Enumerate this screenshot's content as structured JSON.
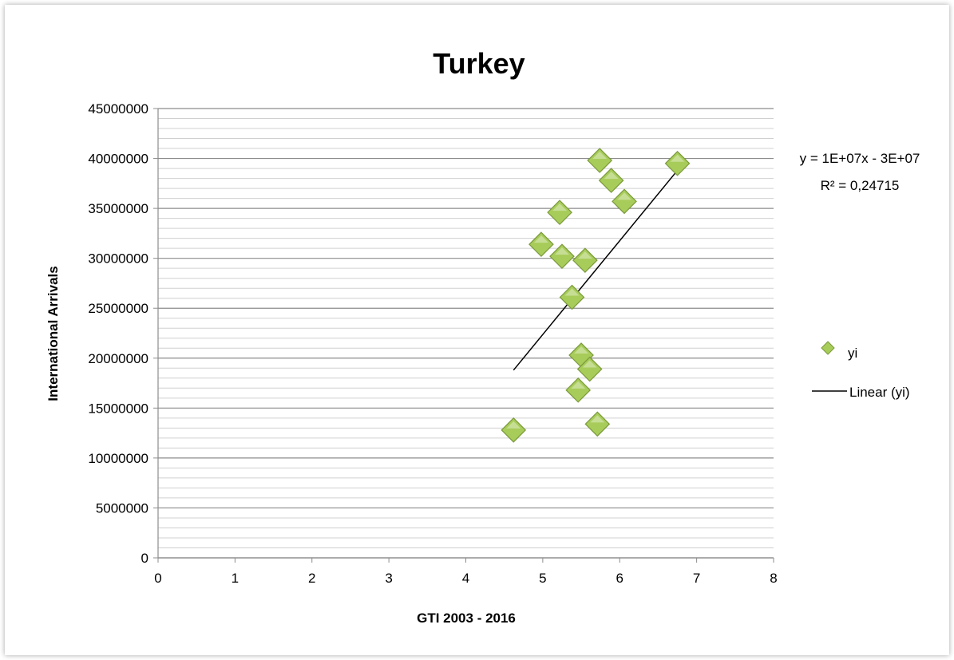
{
  "chart_data": {
    "type": "scatter",
    "title": "Turkey",
    "xlabel": "GTI 2003 - 2016",
    "ylabel": "International Arrivals",
    "xlim": [
      0,
      8
    ],
    "ylim": [
      0,
      45000000
    ],
    "x_ticks": [
      "0",
      "1",
      "2",
      "3",
      "4",
      "5",
      "6",
      "7",
      "8"
    ],
    "y_ticks": [
      "0",
      "5000000",
      "10000000",
      "15000000",
      "20000000",
      "25000000",
      "30000000",
      "35000000",
      "40000000",
      "45000000"
    ],
    "grid": "horizontal major and minor",
    "legend_position": "right",
    "series": [
      {
        "name": "yi",
        "marker": "diamond",
        "color": "#a8cc5a",
        "points": [
          [
            4.62,
            12800000
          ],
          [
            4.98,
            31400000
          ],
          [
            5.22,
            34600000
          ],
          [
            5.25,
            30200000
          ],
          [
            5.38,
            26100000
          ],
          [
            5.46,
            16800000
          ],
          [
            5.5,
            20300000
          ],
          [
            5.55,
            29800000
          ],
          [
            5.61,
            18900000
          ],
          [
            5.71,
            13400000
          ],
          [
            5.74,
            39800000
          ],
          [
            5.89,
            37800000
          ],
          [
            6.06,
            35700000
          ],
          [
            6.75,
            39500000
          ]
        ]
      }
    ],
    "trendline": {
      "name": "Linear (yi)",
      "color": "#000000",
      "x_range": [
        4.62,
        6.75
      ],
      "y_values": [
        18800000,
        38800000
      ],
      "equation": "y = 1E+07x - 3E+07",
      "r_squared": "R² = 0,24715"
    }
  }
}
